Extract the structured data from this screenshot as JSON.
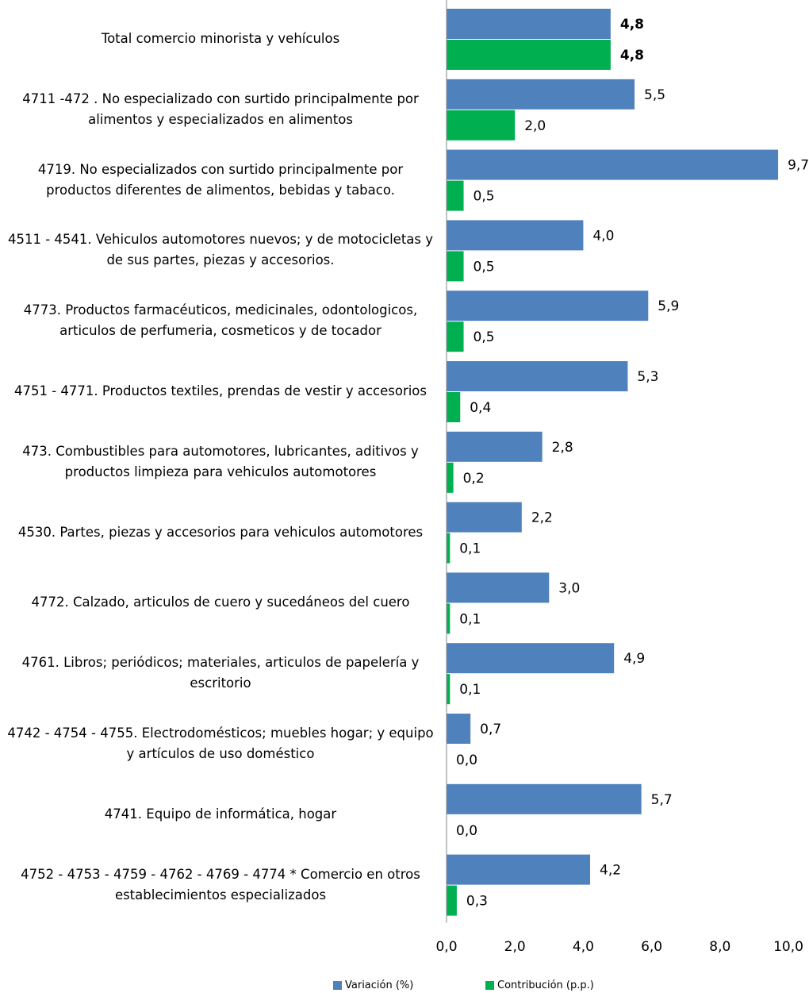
{
  "chart_data": {
    "type": "hbar",
    "categories": [
      "Total comercio minorista y vehículos",
      "4711 -472 .  No especializado con surtido principalmente por alimentos y especializados en alimentos",
      "4719. No especializados con surtido principalmente por productos diferentes de alimentos, bebidas y tabaco.",
      "4511 - 4541. Vehiculos automotores nuevos; y de motocicletas y de sus partes, piezas y accesorios.",
      "4773. Productos farmacéuticos, medicinales, odontologicos, articulos de perfumeria, cosmeticos y de tocador",
      "4751 - 4771. Productos textiles, prendas de vestir y accesorios",
      "473.  Combustibles para automotores, lubricantes, aditivos y productos limpieza para vehiculos automotores",
      "4530. Partes, piezas y accesorios para vehiculos automotores",
      "4772. Calzado, articulos de cuero y sucedáneos del cuero",
      "4761. Libros; periódicos; materiales, articulos de papelería y escritorio",
      "4742 - 4754 - 4755. Electrodomésticos; muebles hogar; y equipo y artículos de uso doméstico",
      "4741. Equipo de informática, hogar",
      "4752 - 4753 - 4759 - 4762 - 4769 - 4774 * Comercio en otros establecimientos especializados"
    ],
    "series": [
      {
        "name": "Variación (%)",
        "color": "#4f81bd",
        "values": [
          4.8,
          5.5,
          9.7,
          4.0,
          5.9,
          5.3,
          2.8,
          2.2,
          3.0,
          4.9,
          0.7,
          5.7,
          4.2
        ],
        "value_labels": [
          "4,8",
          "5,5",
          "9,7",
          "4,0",
          "5,9",
          "5,3",
          "2,8",
          "2,2",
          "3,0",
          "4,9",
          "0,7",
          "5,7",
          "4,2"
        ]
      },
      {
        "name": "Contribución (p.p.)",
        "color": "#00b050",
        "values": [
          4.8,
          2.0,
          0.5,
          0.5,
          0.5,
          0.4,
          0.2,
          0.1,
          0.1,
          0.1,
          0.0,
          0.0,
          0.3
        ],
        "value_labels": [
          "4,8",
          "2,0",
          "0,5",
          "0,5",
          "0,5",
          "0,4",
          "0,2",
          "0,1",
          "0,1",
          "0,1",
          "0,0",
          "0,0",
          "0,3"
        ]
      }
    ],
    "xlim": [
      0,
      10
    ],
    "xticks": [
      {
        "value": 0,
        "label": "0,0"
      },
      {
        "value": 2,
        "label": "2,0"
      },
      {
        "value": 4,
        "label": "4,0"
      },
      {
        "value": 6,
        "label": "6,0"
      },
      {
        "value": 8,
        "label": "8,0"
      },
      {
        "value": 10,
        "label": "10,0"
      }
    ],
    "legend": "bottom"
  }
}
